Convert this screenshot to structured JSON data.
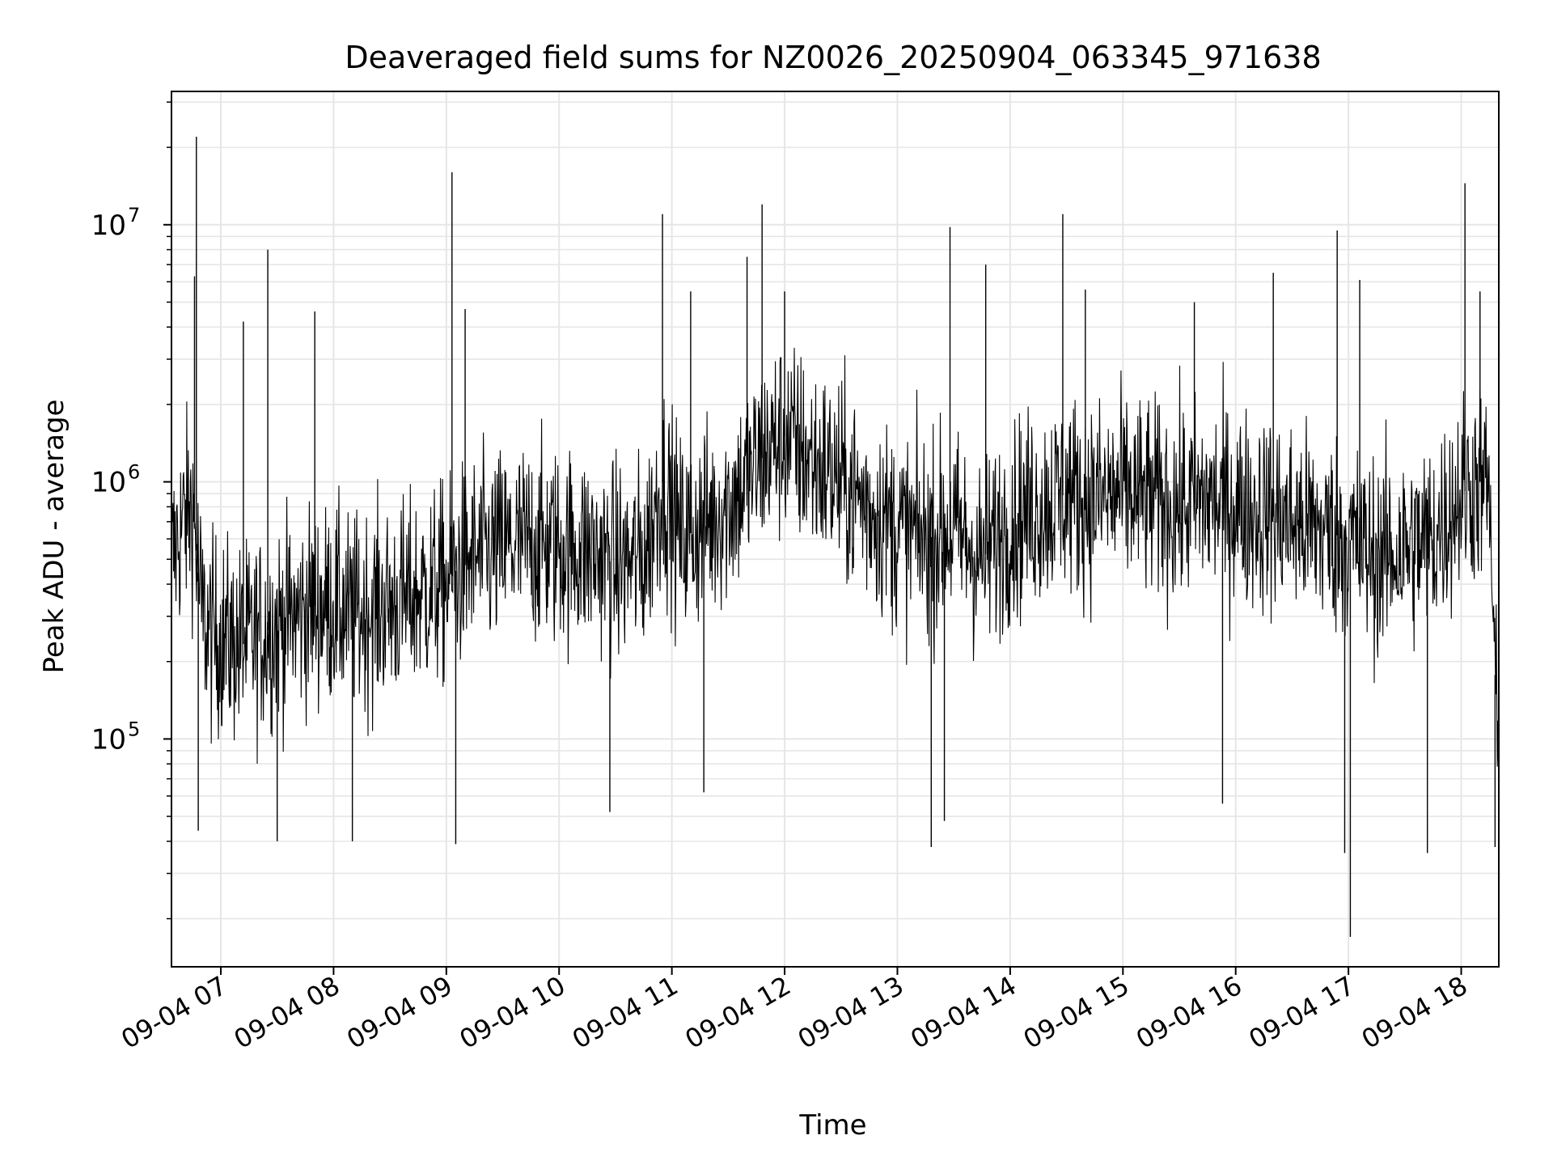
{
  "chart_data": {
    "type": "line",
    "title": "Deaveraged field sums for NZ0026_20250904_063345_971638",
    "xlabel": "Time",
    "ylabel": "Peak ADU - average",
    "yscale": "log",
    "ylim": [
      13000,
      33000000
    ],
    "xlim": [
      "2025-09-04 06:33:45",
      "2025-09-04 18:20:00"
    ],
    "xticks": [
      "2025-09-04 07:00",
      "2025-09-04 08:00",
      "2025-09-04 09:00",
      "2025-09-04 10:00",
      "2025-09-04 11:00",
      "2025-09-04 12:00",
      "2025-09-04 13:00",
      "2025-09-04 14:00",
      "2025-09-04 15:00",
      "2025-09-04 16:00",
      "2025-09-04 17:00",
      "2025-09-04 18:00"
    ],
    "xtick_labels": [
      "09-04 07",
      "09-04 08",
      "09-04 09",
      "09-04 10",
      "09-04 11",
      "09-04 12",
      "09-04 13",
      "09-04 14",
      "09-04 15",
      "09-04 16",
      "09-04 17",
      "09-04 18"
    ],
    "yticks": [
      100000,
      1000000,
      10000000
    ],
    "ytick_labels": [
      {
        "base": "10",
        "exp": "5"
      },
      {
        "base": "10",
        "exp": "6"
      },
      {
        "base": "10",
        "exp": "7"
      }
    ],
    "grid": true,
    "legend": "none",
    "line_color": "#000000",
    "series": [
      {
        "x": [
          "2025-09-04 06:34",
          "2025-09-04 06:40",
          "2025-09-04 06:45",
          "2025-09-04 06:50",
          "2025-09-04 06:55",
          "2025-09-04 07:00",
          "2025-09-04 07:10",
          "2025-09-04 07:20",
          "2025-09-04 07:30",
          "2025-09-04 07:40",
          "2025-09-04 07:50",
          "2025-09-04 08:00",
          "2025-09-04 08:10",
          "2025-09-04 08:20",
          "2025-09-04 08:30",
          "2025-09-04 08:40",
          "2025-09-04 08:50",
          "2025-09-04 09:00",
          "2025-09-04 09:05",
          "2025-09-04 09:15",
          "2025-09-04 09:30",
          "2025-09-04 09:45",
          "2025-09-04 10:00",
          "2025-09-04 10:15",
          "2025-09-04 10:30",
          "2025-09-04 10:45",
          "2025-09-04 10:55",
          "2025-09-04 11:05",
          "2025-09-04 11:20",
          "2025-09-04 11:35",
          "2025-09-04 11:50",
          "2025-09-04 12:00",
          "2025-09-04 12:15",
          "2025-09-04 12:30",
          "2025-09-04 12:45",
          "2025-09-04 13:00",
          "2025-09-04 13:15",
          "2025-09-04 13:30",
          "2025-09-04 13:45",
          "2025-09-04 14:00",
          "2025-09-04 14:15",
          "2025-09-04 14:30",
          "2025-09-04 14:45",
          "2025-09-04 15:00",
          "2025-09-04 15:15",
          "2025-09-04 15:30",
          "2025-09-04 15:45",
          "2025-09-04 16:00",
          "2025-09-04 16:15",
          "2025-09-04 16:30",
          "2025-09-04 16:45",
          "2025-09-04 17:00",
          "2025-09-04 17:15",
          "2025-09-04 17:30",
          "2025-09-04 17:45",
          "2025-09-04 18:00",
          "2025-09-04 18:10",
          "2025-09-04 18:15",
          "2025-09-04 18:20"
        ],
        "y": [
          500000,
          700000,
          800000,
          300000,
          250000,
          250000,
          230000,
          250000,
          280000,
          300000,
          330000,
          330000,
          300000,
          320000,
          330000,
          350000,
          380000,
          400000,
          450000,
          500000,
          550000,
          580000,
          560000,
          540000,
          480000,
          500000,
          1000000,
          600000,
          700000,
          900000,
          1300000,
          1500000,
          1200000,
          1000000,
          800000,
          650000,
          600000,
          650000,
          500000,
          700000,
          800000,
          900000,
          850000,
          900000,
          850000,
          800000,
          850000,
          800000,
          750000,
          700000,
          650000,
          600000,
          500000,
          550000,
          600000,
          900000,
          1000000,
          900000,
          60000
        ]
      }
    ],
    "noise_band_note": "",
    "spikes": [
      {
        "x": "2025-09-04 06:47",
        "y": 22000000
      },
      {
        "x": "2025-09-04 06:46",
        "y": 6300000
      },
      {
        "x": "2025-09-04 07:25",
        "y": 8000000
      },
      {
        "x": "2025-09-04 07:12",
        "y": 4200000
      },
      {
        "x": "2025-09-04 07:50",
        "y": 4600000
      },
      {
        "x": "2025-09-04 09:03",
        "y": 16000000
      },
      {
        "x": "2025-09-04 09:10",
        "y": 4700000
      },
      {
        "x": "2025-09-04 10:55",
        "y": 11000000
      },
      {
        "x": "2025-09-04 11:10",
        "y": 5500000
      },
      {
        "x": "2025-09-04 11:40",
        "y": 7500000
      },
      {
        "x": "2025-09-04 11:48",
        "y": 12000000
      },
      {
        "x": "2025-09-04 12:00",
        "y": 5500000
      },
      {
        "x": "2025-09-04 13:28",
        "y": 9800000
      },
      {
        "x": "2025-09-04 13:47",
        "y": 7000000
      },
      {
        "x": "2025-09-04 14:28",
        "y": 11000000
      },
      {
        "x": "2025-09-04 14:40",
        "y": 5600000
      },
      {
        "x": "2025-09-04 15:38",
        "y": 5000000
      },
      {
        "x": "2025-09-04 16:20",
        "y": 6500000
      },
      {
        "x": "2025-09-04 16:54",
        "y": 9500000
      },
      {
        "x": "2025-09-04 17:06",
        "y": 6100000
      },
      {
        "x": "2025-09-04 18:02",
        "y": 14500000
      },
      {
        "x": "2025-09-04 18:10",
        "y": 5500000
      }
    ],
    "dips": [
      {
        "x": "2025-09-04 06:48",
        "y": 44000
      },
      {
        "x": "2025-09-04 07:30",
        "y": 40000
      },
      {
        "x": "2025-09-04 08:10",
        "y": 40000
      },
      {
        "x": "2025-09-04 09:05",
        "y": 39000
      },
      {
        "x": "2025-09-04 10:27",
        "y": 52000
      },
      {
        "x": "2025-09-04 11:17",
        "y": 62000
      },
      {
        "x": "2025-09-04 13:18",
        "y": 38000
      },
      {
        "x": "2025-09-04 13:25",
        "y": 48000
      },
      {
        "x": "2025-09-04 15:53",
        "y": 56000
      },
      {
        "x": "2025-09-04 17:01",
        "y": 17000
      },
      {
        "x": "2025-09-04 16:58",
        "y": 36000
      },
      {
        "x": "2025-09-04 17:42",
        "y": 36000
      },
      {
        "x": "2025-09-04 18:18",
        "y": 38000
      }
    ]
  }
}
